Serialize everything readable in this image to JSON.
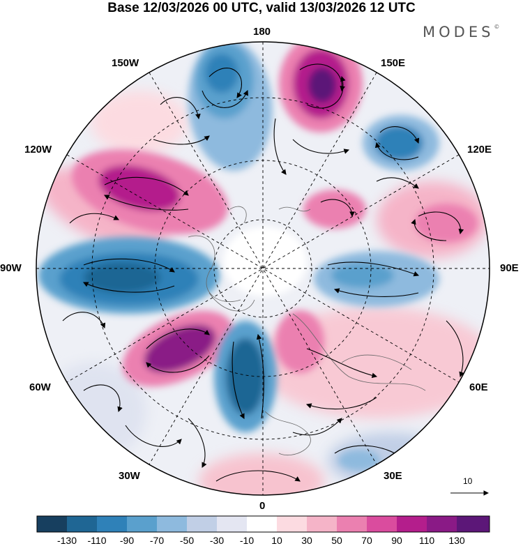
{
  "title": "Base 12/03/2026 00 UTC, valid 13/03/2026 12 UTC",
  "brand": "MODES",
  "brand_mark": "©",
  "longitude_labels": {
    "n180": "180",
    "w150": "150W",
    "e150": "150E",
    "w120": "120W",
    "e120": "120E",
    "w90": "90W",
    "e90": "90E",
    "w60": "60W",
    "e60": "60E",
    "w30": "30W",
    "e30": "30E",
    "s0": "0"
  },
  "reference_vector": {
    "label": "10"
  },
  "colorbar": {
    "ticks": [
      "-130",
      "-110",
      "-90",
      "-70",
      "-50",
      "-30",
      "-10",
      "10",
      "30",
      "50",
      "70",
      "90",
      "110",
      "130"
    ],
    "colors": [
      "#173f5f",
      "#1f6694",
      "#2f81b8",
      "#5aa0cd",
      "#8ebade",
      "#c1cfe6",
      "#e4e6f2",
      "#ffffff",
      "#fcdbe1",
      "#f5b4c8",
      "#eb80b0",
      "#da4c9e",
      "#b41e8c",
      "#8a1a86",
      "#5c1778"
    ]
  }
}
